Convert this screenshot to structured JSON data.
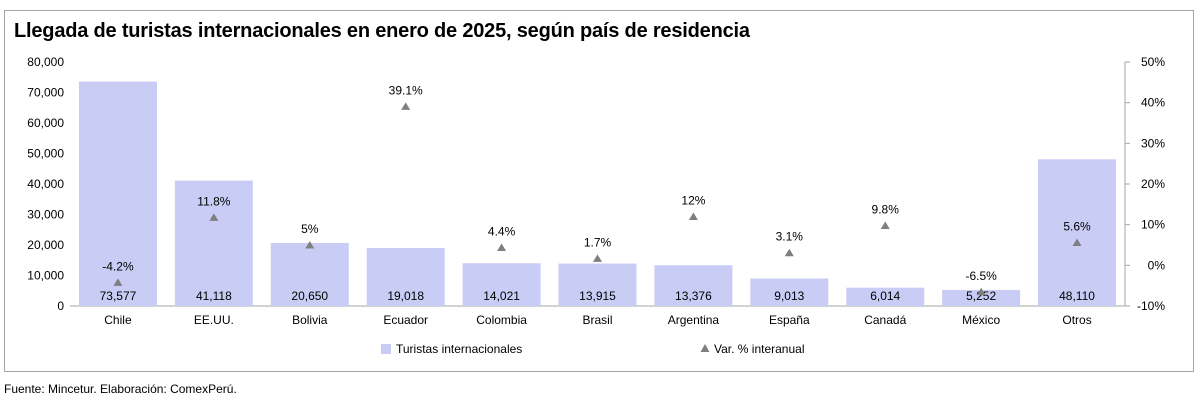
{
  "title": "Llegada de turistas internacionales en enero de 2025, según país de residencia",
  "source": "Fuente: Mincetur. Elaboración: ComexPerú.",
  "colors": {
    "bar": "#c9cdf5",
    "marker": "#7f7f7f",
    "axis": "#a6a6a6"
  },
  "chart_data": {
    "type": "bar",
    "title": "Llegada de turistas internacionales en enero de 2025, según país de residencia",
    "categories": [
      "Chile",
      "EE.UU.",
      "Bolivia",
      "Ecuador",
      "Colombia",
      "Brasil",
      "Argentina",
      "España",
      "Canadá",
      "México",
      "Otros"
    ],
    "series": [
      {
        "name": "Turistas internacionales",
        "axis": "left",
        "values": [
          73577,
          41118,
          20650,
          19018,
          14021,
          13915,
          13376,
          9013,
          6014,
          5252,
          48110
        ],
        "labels": [
          "73,577",
          "41,118",
          "20,650",
          "19,018",
          "14,021",
          "13,915",
          "13,376",
          "9,013",
          "6,014",
          "5,252",
          "48,110"
        ]
      },
      {
        "name": "Var. % interanual",
        "axis": "right",
        "marker": "triangle",
        "values": [
          -4.2,
          11.8,
          5,
          39.1,
          4.4,
          1.7,
          12,
          3.1,
          9.8,
          -6.5,
          5.6
        ],
        "labels": [
          "-4.2%",
          "11.8%",
          "5%",
          "39.1%",
          "4.4%",
          "1.7%",
          "12%",
          "3.1%",
          "9.8%",
          "-6.5%",
          "5.6%"
        ]
      }
    ],
    "y_left": {
      "min": 0,
      "max": 80000,
      "ticks": [
        "0",
        "10,000",
        "20,000",
        "30,000",
        "40,000",
        "50,000",
        "60,000",
        "70,000",
        "80,000"
      ]
    },
    "y_right": {
      "min": -10,
      "max": 50,
      "ticks": [
        "-10%",
        "0%",
        "10%",
        "20%",
        "30%",
        "40%",
        "50%"
      ]
    },
    "legend": {
      "position": "bottom",
      "items": [
        "Turistas internacionales",
        "Var. % interanual"
      ]
    }
  }
}
